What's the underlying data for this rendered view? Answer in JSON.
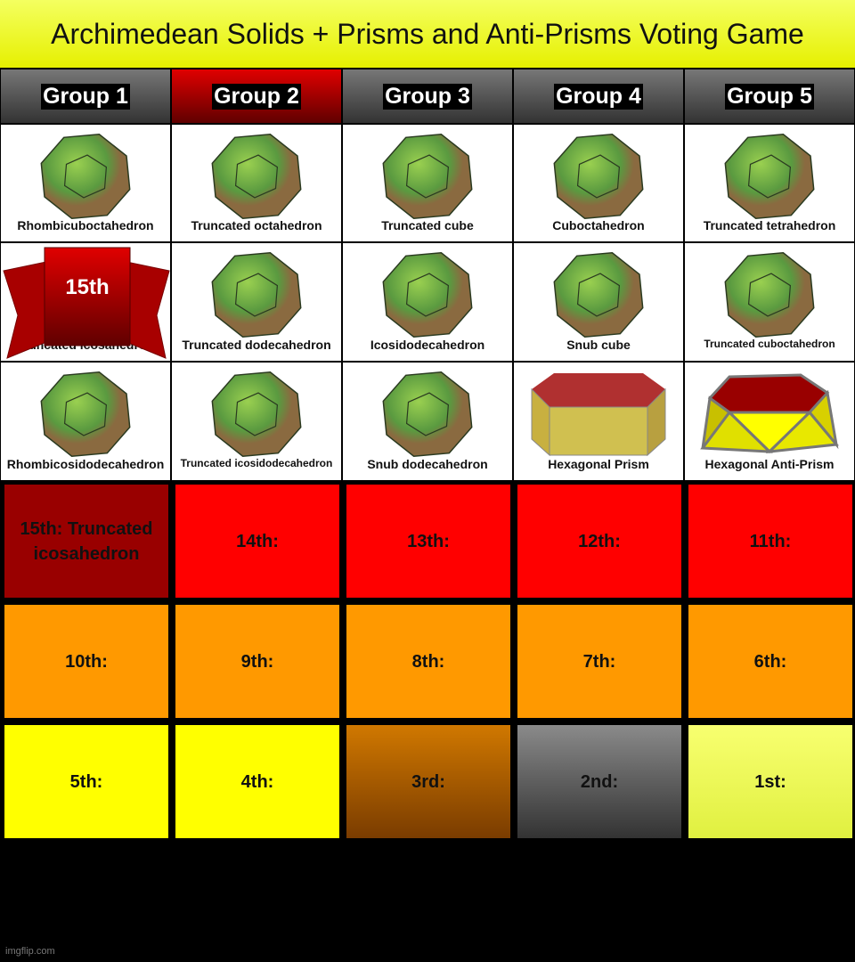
{
  "title": "Archimedean Solids + Prisms and Anti-Prisms Voting Game",
  "groups": [
    "Group 1",
    "Group 2",
    "Group 3",
    "Group 4",
    "Group 5"
  ],
  "solids": [
    [
      "Rhombicuboctahedron",
      "Truncated octahedron",
      "Truncated cube",
      "Cuboctahedron",
      "Truncated tetrahedron"
    ],
    [
      "Truncated icosahedron",
      "Truncated dodecahedron",
      "Icosidodecahedron",
      "Snub cube",
      "Truncated cuboctahedron"
    ],
    [
      "Rhombicosidodecahedron",
      "Truncated icosidodecahedron",
      "Snub dodecahedron",
      "Hexagonal Prism",
      "Hexagonal Anti-Prism"
    ]
  ],
  "banner": "15th",
  "rankings": [
    [
      "15th: Truncated icosahedron",
      "14th:",
      "13th:",
      "12th:",
      "11th:"
    ],
    [
      "10th:",
      "9th:",
      "8th:",
      "7th:",
      "6th:"
    ],
    [
      "5th:",
      "4th:",
      "3rd:",
      "2nd:",
      "1st:"
    ]
  ],
  "watermark": "imgflip.com"
}
